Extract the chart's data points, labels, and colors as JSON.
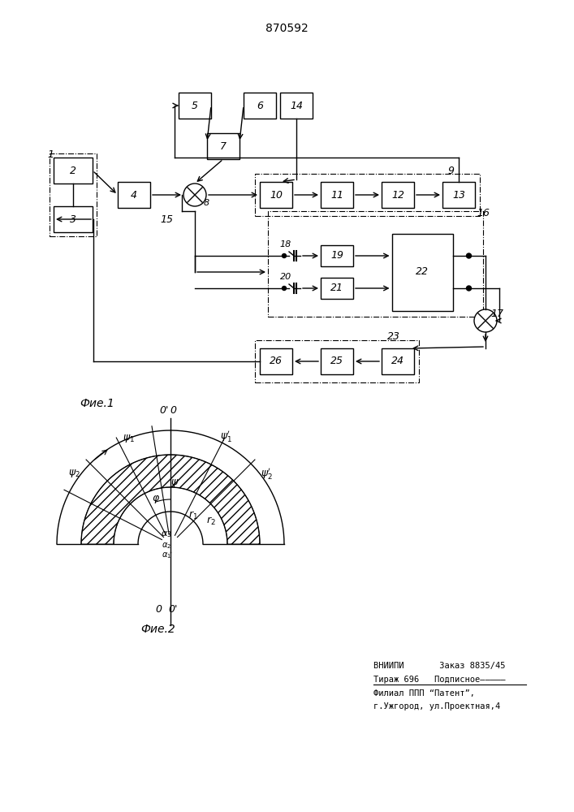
{
  "title": "870592",
  "fig1_label": "Фие.1",
  "fig2_label": "Фие.2",
  "footer_line1": "ВНИИПИ       Заказ 8835/45",
  "footer_line2": "Тираж 696   Подписное―――――",
  "footer_line3": "Филиал ППП “Патент”,",
  "footer_line4": "г.Ужгород, ул.Проектная,4",
  "bg_color": "#ffffff",
  "line_color": "#000000"
}
